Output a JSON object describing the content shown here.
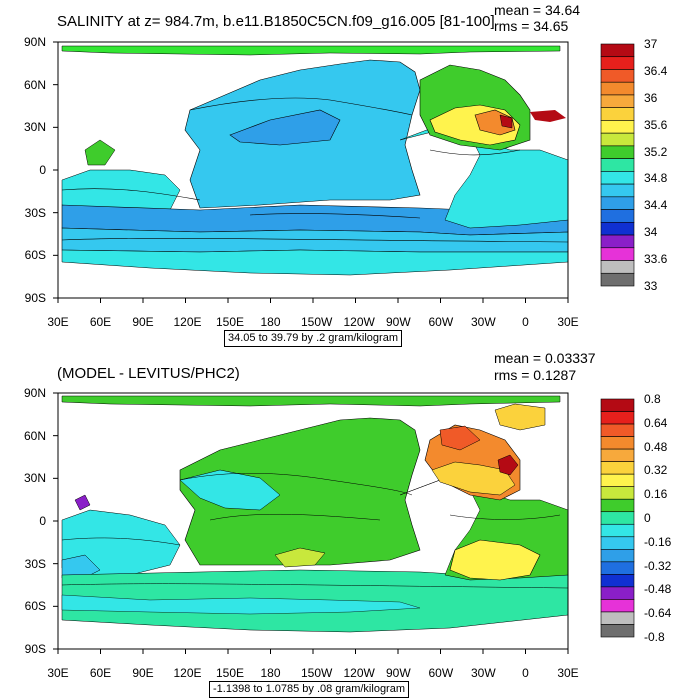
{
  "chart_data": [
    {
      "type": "heatmap",
      "title": "SALINITY at z= 984.7m, b.e11.B1850C5CN.f09_g16.005 [81-100]",
      "mean_text": "mean = 34.64",
      "rms_text": "rms = 34.65",
      "contour_info": "34.05 to 39.79 by .2 gram/kilogram",
      "x_ticks": [
        "30E",
        "60E",
        "90E",
        "120E",
        "150E",
        "180",
        "150W",
        "120W",
        "90W",
        "60W",
        "30W",
        "0",
        "30E"
      ],
      "y_ticks": [
        "90N",
        "60N",
        "30N",
        "0",
        "30S",
        "60S",
        "90S"
      ],
      "colorbar_labels": [
        "37",
        "36.4",
        "36",
        "35.6",
        "35.2",
        "34.8",
        "34.4",
        "34",
        "33.6",
        "33"
      ],
      "colorbar_colors": [
        "#b40a14",
        "#e6201c",
        "#f05a28",
        "#f38a2d",
        "#f7a93c",
        "#fbd23c",
        "#fff34d",
        "#c8e83c",
        "#3fcc2c",
        "#2ee6a3",
        "#33e6e6",
        "#35c8ef",
        "#2f9fe8",
        "#1f6fe0",
        "#1030d2",
        "#8a1fc8",
        "#e632d8",
        "#bebebe",
        "#6e6e6e"
      ],
      "units": "gram/kilogram"
    },
    {
      "type": "heatmap",
      "title": "(MODEL - LEVITUS/PHC2)",
      "mean_text": "mean = 0.03337",
      "rms_text": "rms = 0.1287",
      "contour_info": "-1.1398 to 1.0785 by .08 gram/kilogram",
      "x_ticks": [
        "30E",
        "60E",
        "90E",
        "120E",
        "150E",
        "180",
        "150W",
        "120W",
        "90W",
        "60W",
        "30W",
        "0",
        "30E"
      ],
      "y_ticks": [
        "90N",
        "60N",
        "30N",
        "0",
        "30S",
        "60S",
        "90S"
      ],
      "colorbar_labels": [
        "0.8",
        "0.64",
        "0.48",
        "0.32",
        "0.16",
        "0",
        "-0.16",
        "-0.32",
        "-0.48",
        "-0.64",
        "-0.8"
      ],
      "colorbar_colors": [
        "#b40a14",
        "#e6201c",
        "#f05a28",
        "#f38a2d",
        "#f7a93c",
        "#fbd23c",
        "#fff34d",
        "#c8e83c",
        "#3fcc2c",
        "#2ee6a3",
        "#33e6e6",
        "#35c8ef",
        "#2f9fe8",
        "#1f6fe0",
        "#1030d2",
        "#8a1fc8",
        "#e632d8",
        "#bebebe",
        "#6e6e6e"
      ],
      "units": "gram/kilogram"
    }
  ]
}
